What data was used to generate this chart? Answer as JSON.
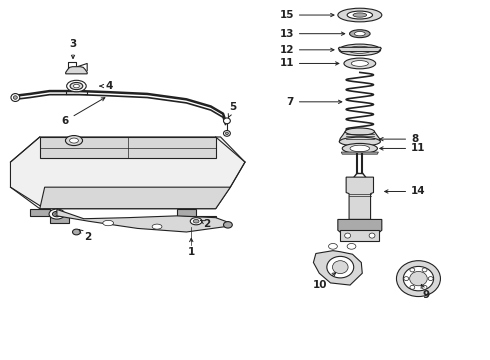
{
  "bg_color": "#ffffff",
  "line_color": "#222222",
  "fig_width": 4.9,
  "fig_height": 3.6,
  "dpi": 100,
  "label_fontsize": 7.5,
  "arrow_lw": 0.7,
  "draw_lw": 0.8,
  "draw_lw_thick": 1.4,
  "gray_light": "#d8d8d8",
  "gray_mid": "#aaaaaa",
  "gray_dark": "#777777"
}
